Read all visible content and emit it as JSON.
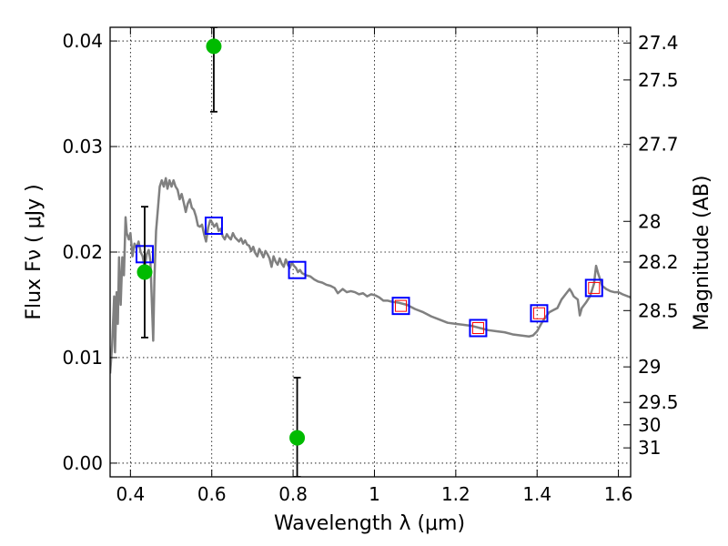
{
  "chart_data": {
    "type": "scatter",
    "title": "",
    "xlabel": "Wavelength  λ (μm)",
    "ylabel": "Flux  Fν  ( μJy )",
    "y2label": "Magnitude (AB)",
    "xlim": [
      0.35,
      1.63
    ],
    "ylim": [
      -0.0013,
      0.0413
    ],
    "grid": true,
    "legend": "none",
    "x_ticks": [
      {
        "value": 0.4,
        "label": "0.4"
      },
      {
        "value": 0.6,
        "label": "0.6"
      },
      {
        "value": 0.8,
        "label": "0.8"
      },
      {
        "value": 1.0,
        "label": "1"
      },
      {
        "value": 1.2,
        "label": "1.2"
      },
      {
        "value": 1.4,
        "label": "1.4"
      },
      {
        "value": 1.6,
        "label": "1.6"
      }
    ],
    "y_ticks": [
      {
        "value": 0.0,
        "label": "0.00"
      },
      {
        "value": 0.01,
        "label": "0.01"
      },
      {
        "value": 0.02,
        "label": "0.02"
      },
      {
        "value": 0.03,
        "label": "0.03"
      },
      {
        "value": 0.04,
        "label": "0.04"
      }
    ],
    "mag_ticks": [
      {
        "value": 27.4,
        "label": "27.4"
      },
      {
        "value": 27.5,
        "label": "27.5"
      },
      {
        "value": 27.7,
        "label": "27.7"
      },
      {
        "value": 28.0,
        "label": "28"
      },
      {
        "value": 28.2,
        "label": "28.2"
      },
      {
        "value": 28.5,
        "label": "28.5"
      },
      {
        "value": 29.0,
        "label": "29"
      },
      {
        "value": 29.5,
        "label": "29.5"
      },
      {
        "value": 30.0,
        "label": "30"
      },
      {
        "value": 31.0,
        "label": "31"
      }
    ],
    "series": [
      {
        "kind": "spectrum",
        "color": "#808080",
        "points": [
          [
            0.35,
            0.0085
          ],
          [
            0.355,
            0.0112
          ],
          [
            0.36,
            0.0158
          ],
          [
            0.362,
            0.0105
          ],
          [
            0.366,
            0.0162
          ],
          [
            0.369,
            0.0132
          ],
          [
            0.372,
            0.0195
          ],
          [
            0.376,
            0.015
          ],
          [
            0.38,
            0.0195
          ],
          [
            0.384,
            0.0178
          ],
          [
            0.388,
            0.0233
          ],
          [
            0.391,
            0.0218
          ],
          [
            0.396,
            0.0212
          ],
          [
            0.4,
            0.0218
          ],
          [
            0.405,
            0.0196
          ],
          [
            0.41,
            0.0208
          ],
          [
            0.415,
            0.0204
          ],
          [
            0.42,
            0.021
          ],
          [
            0.425,
            0.02
          ],
          [
            0.43,
            0.0196
          ],
          [
            0.435,
            0.0185
          ],
          [
            0.44,
            0.0198
          ],
          [
            0.445,
            0.0202
          ],
          [
            0.449,
            0.0192
          ],
          [
            0.452,
            0.016
          ],
          [
            0.456,
            0.0116
          ],
          [
            0.459,
            0.0175
          ],
          [
            0.463,
            0.022
          ],
          [
            0.468,
            0.0243
          ],
          [
            0.472,
            0.0262
          ],
          [
            0.477,
            0.0268
          ],
          [
            0.482,
            0.0262
          ],
          [
            0.487,
            0.027
          ],
          [
            0.491,
            0.026
          ],
          [
            0.496,
            0.0268
          ],
          [
            0.501,
            0.0262
          ],
          [
            0.506,
            0.0268
          ],
          [
            0.511,
            0.0262
          ],
          [
            0.516,
            0.0259
          ],
          [
            0.521,
            0.025
          ],
          [
            0.526,
            0.0255
          ],
          [
            0.531,
            0.0247
          ],
          [
            0.536,
            0.0238
          ],
          [
            0.541,
            0.0246
          ],
          [
            0.546,
            0.025
          ],
          [
            0.551,
            0.0242
          ],
          [
            0.556,
            0.024
          ],
          [
            0.561,
            0.0234
          ],
          [
            0.566,
            0.0225
          ],
          [
            0.571,
            0.0224
          ],
          [
            0.576,
            0.0226
          ],
          [
            0.581,
            0.0217
          ],
          [
            0.586,
            0.021
          ],
          [
            0.591,
            0.0223
          ],
          [
            0.596,
            0.023
          ],
          [
            0.601,
            0.0228
          ],
          [
            0.606,
            0.0224
          ],
          [
            0.612,
            0.0227
          ],
          [
            0.617,
            0.022
          ],
          [
            0.622,
            0.0222
          ],
          [
            0.627,
            0.0215
          ],
          [
            0.632,
            0.0212
          ],
          [
            0.637,
            0.0217
          ],
          [
            0.642,
            0.0214
          ],
          [
            0.647,
            0.0212
          ],
          [
            0.652,
            0.0218
          ],
          [
            0.657,
            0.0214
          ],
          [
            0.662,
            0.0212
          ],
          [
            0.667,
            0.021
          ],
          [
            0.672,
            0.0213
          ],
          [
            0.677,
            0.0208
          ],
          [
            0.682,
            0.0211
          ],
          [
            0.687,
            0.0207
          ],
          [
            0.692,
            0.0206
          ],
          [
            0.697,
            0.0201
          ],
          [
            0.702,
            0.0205
          ],
          [
            0.707,
            0.0199
          ],
          [
            0.712,
            0.0196
          ],
          [
            0.717,
            0.0203
          ],
          [
            0.722,
            0.0199
          ],
          [
            0.727,
            0.0195
          ],
          [
            0.732,
            0.0201
          ],
          [
            0.737,
            0.0198
          ],
          [
            0.742,
            0.0194
          ],
          [
            0.747,
            0.0186
          ],
          [
            0.752,
            0.0196
          ],
          [
            0.757,
            0.0191
          ],
          [
            0.762,
            0.0188
          ],
          [
            0.767,
            0.0194
          ],
          [
            0.772,
            0.0189
          ],
          [
            0.777,
            0.0186
          ],
          [
            0.782,
            0.0193
          ],
          [
            0.787,
            0.0188
          ],
          [
            0.792,
            0.0185
          ],
          [
            0.797,
            0.019
          ],
          [
            0.802,
            0.0187
          ],
          [
            0.807,
            0.0185
          ],
          [
            0.812,
            0.0181
          ],
          [
            0.817,
            0.0183
          ],
          [
            0.822,
            0.018
          ],
          [
            0.832,
            0.0178
          ],
          [
            0.842,
            0.0177
          ],
          [
            0.852,
            0.0174
          ],
          [
            0.862,
            0.0172
          ],
          [
            0.872,
            0.0171
          ],
          [
            0.882,
            0.0169
          ],
          [
            0.892,
            0.0168
          ],
          [
            0.902,
            0.0166
          ],
          [
            0.91,
            0.0161
          ],
          [
            0.922,
            0.0165
          ],
          [
            0.932,
            0.0162
          ],
          [
            0.942,
            0.0163
          ],
          [
            0.952,
            0.0162
          ],
          [
            0.962,
            0.016
          ],
          [
            0.972,
            0.0161
          ],
          [
            0.982,
            0.0158
          ],
          [
            0.992,
            0.016
          ],
          [
            1.002,
            0.0159
          ],
          [
            1.012,
            0.0157
          ],
          [
            1.022,
            0.0154
          ],
          [
            1.032,
            0.0154
          ],
          [
            1.042,
            0.0153
          ],
          [
            1.06,
            0.0152
          ],
          [
            1.08,
            0.015
          ],
          [
            1.1,
            0.0146
          ],
          [
            1.12,
            0.0143
          ],
          [
            1.14,
            0.0139
          ],
          [
            1.16,
            0.0136
          ],
          [
            1.18,
            0.0133
          ],
          [
            1.2,
            0.0132
          ],
          [
            1.22,
            0.0131
          ],
          [
            1.24,
            0.013
          ],
          [
            1.26,
            0.0128
          ],
          [
            1.28,
            0.0126
          ],
          [
            1.3,
            0.0125
          ],
          [
            1.32,
            0.0124
          ],
          [
            1.34,
            0.0122
          ],
          [
            1.36,
            0.0121
          ],
          [
            1.38,
            0.012
          ],
          [
            1.39,
            0.0121
          ],
          [
            1.4,
            0.0125
          ],
          [
            1.41,
            0.0132
          ],
          [
            1.42,
            0.0138
          ],
          [
            1.43,
            0.0143
          ],
          [
            1.44,
            0.0145
          ],
          [
            1.45,
            0.0147
          ],
          [
            1.46,
            0.0155
          ],
          [
            1.47,
            0.016
          ],
          [
            1.48,
            0.0165
          ],
          [
            1.485,
            0.0162
          ],
          [
            1.49,
            0.0158
          ],
          [
            1.5,
            0.0155
          ],
          [
            1.505,
            0.014
          ],
          [
            1.51,
            0.0147
          ],
          [
            1.52,
            0.0152
          ],
          [
            1.53,
            0.0158
          ],
          [
            1.54,
            0.017
          ],
          [
            1.545,
            0.0187
          ],
          [
            1.55,
            0.018
          ],
          [
            1.56,
            0.0168
          ],
          [
            1.57,
            0.0165
          ],
          [
            1.58,
            0.0163
          ],
          [
            1.59,
            0.0162
          ],
          [
            1.6,
            0.0162
          ],
          [
            1.61,
            0.016
          ],
          [
            1.63,
            0.0157
          ]
        ]
      },
      {
        "kind": "model_photometry",
        "marker": "open-square",
        "color": "#0000ff",
        "points": [
          [
            0.435,
            0.0198
          ],
          [
            0.605,
            0.0225
          ],
          [
            0.81,
            0.0183
          ],
          [
            1.065,
            0.0149
          ],
          [
            1.255,
            0.0128
          ],
          [
            1.405,
            0.0142
          ],
          [
            1.54,
            0.0166
          ]
        ]
      },
      {
        "kind": "observed_nir",
        "marker": "open-square",
        "color": "#ff0000",
        "points": [
          [
            1.065,
            0.0149
          ],
          [
            1.255,
            0.0128
          ],
          [
            1.405,
            0.0142
          ],
          [
            1.54,
            0.0166
          ]
        ]
      },
      {
        "kind": "observed_optical",
        "marker": "filled-circle",
        "color": "#00bb00",
        "points": [
          {
            "x": 0.435,
            "y": 0.0181,
            "yerr_low": 0.0119,
            "yerr_high": 0.0243
          },
          {
            "x": 0.605,
            "y": 0.0395,
            "yerr_low": 0.0333,
            "yerr_high": 0.0413
          },
          {
            "x": 0.81,
            "y": 0.0024,
            "yerr_low": -0.0013,
            "yerr_high": 0.0081
          }
        ]
      }
    ]
  }
}
